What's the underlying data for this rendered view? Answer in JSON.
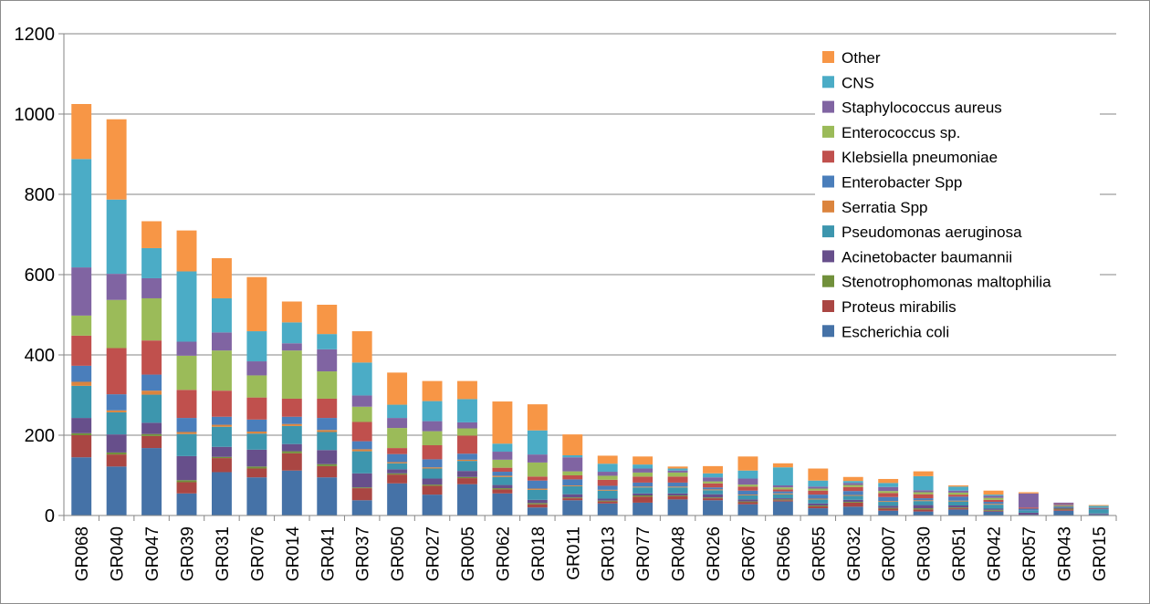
{
  "chart_data": {
    "type": "bar",
    "stacked": true,
    "title": "",
    "xlabel": "",
    "ylabel": "",
    "ylim": [
      0,
      1200
    ],
    "yticks": [
      0,
      200,
      400,
      600,
      800,
      1000,
      1200
    ],
    "grid": true,
    "legend_position": "top-right",
    "categories": [
      "GR068",
      "GR040",
      "GR047",
      "GR039",
      "GR031",
      "GR076",
      "GR014",
      "GR041",
      "GR037",
      "GR050",
      "GR027",
      "GR005",
      "GR062",
      "GR018",
      "GR011",
      "GR013",
      "GR077",
      "GR048",
      "GR026",
      "GR067",
      "GR056",
      "GR055",
      "GR032",
      "GR007",
      "GR030",
      "GR051",
      "GR042",
      "GR057",
      "GR043",
      "GR015"
    ],
    "series": [
      {
        "name": "Escherichia coli",
        "color": "#4572a7",
        "values": [
          145,
          122,
          168,
          55,
          108,
          95,
          112,
          95,
          38,
          80,
          52,
          78,
          55,
          20,
          38,
          30,
          32,
          40,
          38,
          28,
          35,
          18,
          22,
          12,
          10,
          15,
          10,
          2,
          12,
          3
        ]
      },
      {
        "name": "Proteus mirabilis",
        "color": "#aa4643",
        "values": [
          55,
          30,
          30,
          28,
          35,
          22,
          43,
          28,
          30,
          22,
          22,
          15,
          10,
          8,
          5,
          5,
          15,
          8,
          5,
          5,
          3,
          5,
          10,
          5,
          5,
          3,
          2,
          0,
          3,
          0
        ]
      },
      {
        "name": "Stenotrophomonas maltophilia",
        "color": "#71903b",
        "values": [
          5,
          5,
          5,
          5,
          3,
          5,
          5,
          5,
          2,
          3,
          3,
          3,
          3,
          3,
          2,
          2,
          3,
          2,
          2,
          2,
          2,
          2,
          2,
          2,
          3,
          2,
          2,
          0,
          2,
          0
        ]
      },
      {
        "name": "Acinetobacter baumannii",
        "color": "#674f8b",
        "values": [
          38,
          45,
          28,
          60,
          25,
          42,
          18,
          35,
          35,
          10,
          15,
          15,
          8,
          8,
          8,
          5,
          5,
          5,
          8,
          5,
          3,
          5,
          5,
          5,
          8,
          5,
          3,
          5,
          3,
          2
        ]
      },
      {
        "name": "Pseudomonas aeruginosa",
        "color": "#3d96ae",
        "values": [
          80,
          55,
          70,
          55,
          50,
          40,
          45,
          45,
          55,
          15,
          25,
          25,
          20,
          25,
          20,
          20,
          15,
          15,
          10,
          10,
          10,
          10,
          10,
          10,
          10,
          10,
          10,
          5,
          3,
          10
        ]
      },
      {
        "name": "Serratia Spp",
        "color": "#db843d",
        "values": [
          10,
          5,
          10,
          5,
          5,
          5,
          5,
          5,
          5,
          3,
          3,
          3,
          3,
          3,
          2,
          2,
          2,
          2,
          2,
          2,
          2,
          2,
          2,
          2,
          2,
          2,
          2,
          0,
          2,
          0
        ]
      },
      {
        "name": "Enterobacter Spp",
        "color": "#4a7ebb",
        "values": [
          40,
          40,
          40,
          35,
          20,
          30,
          18,
          30,
          20,
          20,
          20,
          15,
          10,
          20,
          15,
          10,
          10,
          10,
          5,
          10,
          5,
          10,
          10,
          10,
          5,
          10,
          5,
          5,
          2,
          2
        ]
      },
      {
        "name": "Klebsiella pneumoniae",
        "color": "#c0504d",
        "values": [
          75,
          115,
          85,
          70,
          65,
          55,
          45,
          48,
          48,
          15,
          35,
          45,
          10,
          10,
          10,
          15,
          15,
          15,
          10,
          10,
          5,
          10,
          10,
          10,
          10,
          5,
          5,
          3,
          2,
          2
        ]
      },
      {
        "name": "Enterococcus sp.",
        "color": "#9bbb59",
        "values": [
          50,
          120,
          105,
          85,
          100,
          55,
          120,
          68,
          38,
          50,
          35,
          18,
          20,
          35,
          10,
          10,
          10,
          10,
          5,
          5,
          5,
          5,
          5,
          5,
          5,
          5,
          5,
          0,
          0,
          0
        ]
      },
      {
        "name": "Staphylococcus aureus",
        "color": "#8064a2",
        "values": [
          120,
          65,
          50,
          35,
          45,
          35,
          18,
          55,
          28,
          25,
          25,
          15,
          20,
          20,
          35,
          10,
          10,
          5,
          10,
          15,
          5,
          5,
          5,
          10,
          5,
          5,
          5,
          35,
          3,
          0
        ]
      },
      {
        "name": "CNS",
        "color": "#4bacc6",
        "values": [
          270,
          185,
          75,
          175,
          85,
          75,
          52,
          38,
          82,
          33,
          50,
          58,
          20,
          60,
          5,
          20,
          10,
          5,
          10,
          20,
          45,
          15,
          5,
          10,
          35,
          10,
          3,
          0,
          0,
          5
        ]
      },
      {
        "name": "Other",
        "color": "#f79646",
        "values": [
          137,
          200,
          67,
          102,
          100,
          135,
          52,
          73,
          78,
          80,
          50,
          45,
          105,
          65,
          52,
          20,
          20,
          5,
          18,
          35,
          10,
          30,
          10,
          10,
          12,
          3,
          10,
          3,
          0,
          2
        ]
      }
    ]
  }
}
